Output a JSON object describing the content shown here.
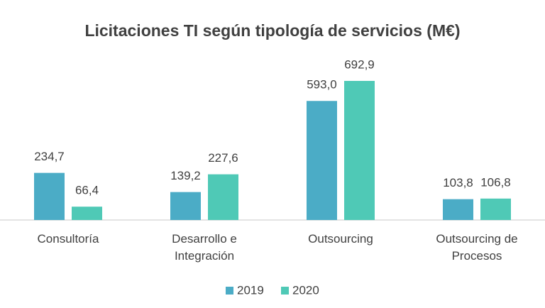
{
  "chart_data": {
    "type": "bar",
    "title": "Licitaciones TI según tipología de servicios (M€)",
    "categories": [
      "Consultoría",
      "Desarrollo e Integración",
      "Outsourcing",
      "Outsourcing de Procesos"
    ],
    "series": [
      {
        "name": "2019",
        "color": "#4bacc6",
        "values": [
          234.7,
          139.2,
          593.0,
          103.8
        ],
        "value_labels": [
          "234,7",
          "139,2",
          "593,0",
          "103,8"
        ]
      },
      {
        "name": "2020",
        "color": "#4fc9b6",
        "values": [
          66.4,
          227.6,
          692.9,
          106.8
        ],
        "value_labels": [
          "66,4",
          "227,6",
          "692,9",
          "106,8"
        ]
      }
    ],
    "legend": "bottom"
  }
}
